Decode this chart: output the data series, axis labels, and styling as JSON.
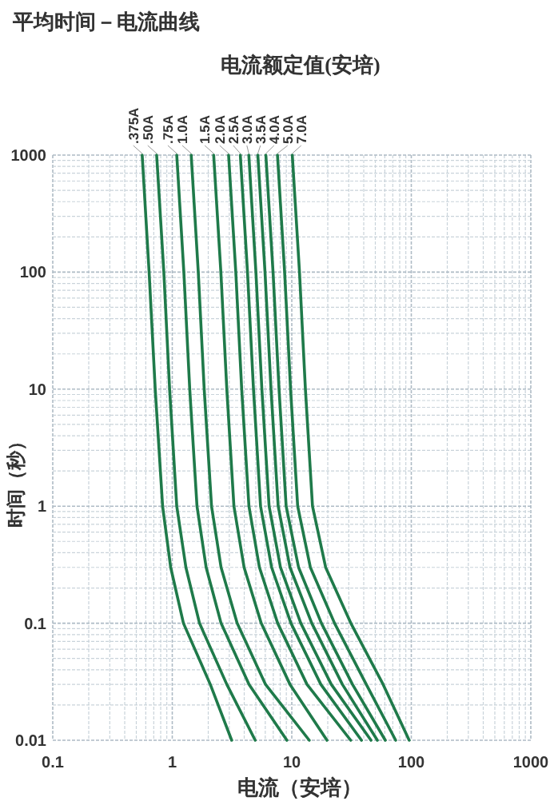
{
  "chart_data": {
    "type": "line",
    "title": "平均时间－电流曲线",
    "subtitle": "电流额定值(安培)",
    "xlabel": "电流（安培）",
    "ylabel": "时间（秒）",
    "log": "xy",
    "grid": true,
    "xlim": [
      0.1,
      1000
    ],
    "ylim": [
      0.01,
      1000
    ],
    "xticks": [
      0.1,
      1,
      10,
      100,
      1000
    ],
    "yticks": [
      0.01,
      0.1,
      1,
      10,
      100,
      1000
    ],
    "series": [
      {
        "name": ".375A",
        "color": "#1f7a4a",
        "x": [
          0.56,
          0.64,
          0.72,
          0.83,
          0.97,
          1.24,
          2.08,
          3.14
        ],
        "values": [
          1000,
          100,
          10,
          1,
          0.3,
          0.1,
          0.03,
          0.01
        ]
      },
      {
        "name": ".50A",
        "color": "#1f7a4a",
        "x": [
          0.74,
          0.85,
          0.95,
          1.09,
          1.3,
          1.69,
          2.86,
          4.94
        ],
        "values": [
          1000,
          100,
          10,
          1,
          0.3,
          0.1,
          0.03,
          0.01
        ]
      },
      {
        "name": ".75A",
        "color": "#1f7a4a",
        "x": [
          1.09,
          1.25,
          1.4,
          1.61,
          1.92,
          2.56,
          4.39,
          9.1
        ],
        "values": [
          1000,
          100,
          10,
          1,
          0.3,
          0.1,
          0.03,
          0.01
        ]
      },
      {
        "name": "1.0A",
        "color": "#1f7a4a",
        "x": [
          1.44,
          1.65,
          1.85,
          2.13,
          2.56,
          3.49,
          6.03,
          14
        ],
        "values": [
          1000,
          100,
          10,
          1,
          0.3,
          0.1,
          0.03,
          0.01
        ]
      },
      {
        "name": "1.5A",
        "color": "#1f7a4a",
        "x": [
          2.22,
          2.55,
          2.86,
          3.28,
          3.99,
          5.55,
          9.66,
          19.7
        ],
        "values": [
          1000,
          100,
          10,
          1,
          0.3,
          0.1,
          0.03,
          0.01
        ]
      },
      {
        "name": "2.0A",
        "color": "#1f7a4a",
        "x": [
          2.96,
          3.4,
          3.81,
          4.38,
          5.36,
          7.62,
          13.4,
          31.1
        ],
        "values": [
          1000,
          100,
          10,
          1,
          0.3,
          0.1,
          0.03,
          0.01
        ]
      },
      {
        "name": "2.5A",
        "color": "#1f7a4a",
        "x": [
          3.71,
          4.26,
          4.78,
          5.48,
          6.78,
          9.84,
          17.5,
          38.3
        ],
        "values": [
          1000,
          100,
          10,
          1,
          0.3,
          0.1,
          0.03,
          0.01
        ]
      },
      {
        "name": "3.0A",
        "color": "#1f7a4a",
        "x": [
          4.37,
          5.01,
          5.62,
          6.46,
          8.04,
          11.9,
          21.4,
          46
        ],
        "values": [
          1000,
          100,
          10,
          1,
          0.3,
          0.1,
          0.03,
          0.01
        ]
      },
      {
        "name": "3.5A",
        "color": "#1f7a4a",
        "x": [
          5.2,
          5.97,
          6.7,
          7.69,
          9.66,
          14.7,
          26.5,
          52
        ],
        "values": [
          1000,
          100,
          10,
          1,
          0.3,
          0.1,
          0.03,
          0.01
        ]
      },
      {
        "name": "4.0A",
        "color": "#1f7a4a",
        "x": [
          6.07,
          6.97,
          7.82,
          8.97,
          11.4,
          17.7,
          32.2,
          60.6
        ],
        "values": [
          1000,
          100,
          10,
          1,
          0.3,
          0.1,
          0.03,
          0.01
        ]
      },
      {
        "name": "5.0A",
        "color": "#1f7a4a",
        "x": [
          7.59,
          8.71,
          9.77,
          11.2,
          14.3,
          22.8,
          42,
          74
        ],
        "values": [
          1000,
          100,
          10,
          1,
          0.3,
          0.1,
          0.03,
          0.01
        ]
      },
      {
        "name": "7.0A",
        "color": "#1f7a4a",
        "x": [
          10.1,
          11.6,
          13,
          14.9,
          19.2,
          31.2,
          58.1,
          96
        ],
        "values": [
          1000,
          100,
          10,
          1,
          0.3,
          0.1,
          0.03,
          0.01
        ]
      }
    ]
  }
}
